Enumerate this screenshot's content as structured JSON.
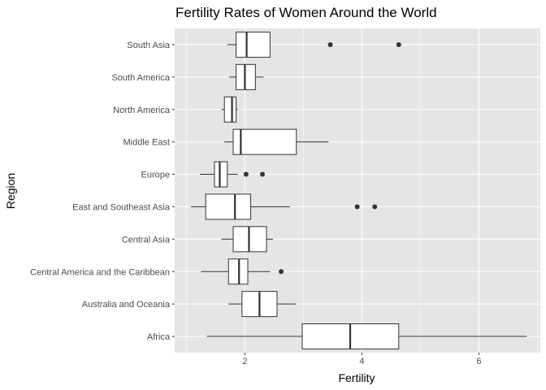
{
  "chart_data": {
    "type": "boxplot",
    "title": "Fertility Rates of Women Around the World",
    "xlabel": "Fertility",
    "ylabel": "Region",
    "xlim": [
      0.8,
      7.05
    ],
    "x_ticks": [
      2,
      4,
      6
    ],
    "orientation": "horizontal",
    "grid": true,
    "colors": {
      "panel": "#e5e5e5",
      "grid": "#ffffff",
      "box_fill": "#ffffff",
      "box_line": "#333333",
      "outlier": "#333333"
    },
    "categories": [
      "South Asia",
      "South America",
      "North America",
      "Middle East",
      "Europe",
      "East and Southeast Asia",
      "Central Asia",
      "Central America and the Caribbean",
      "Australia and Oceania",
      "Africa"
    ],
    "boxes": [
      {
        "region": "South Asia",
        "whisker_low": 1.7,
        "q1": 1.85,
        "median": 2.03,
        "q3": 2.43,
        "whisker_high": 2.43,
        "outliers": [
          3.46,
          4.63
        ]
      },
      {
        "region": "South America",
        "whisker_low": 1.73,
        "q1": 1.85,
        "median": 2.0,
        "q3": 2.18,
        "whisker_high": 2.32,
        "outliers": []
      },
      {
        "region": "North America",
        "whisker_low": 1.6,
        "q1": 1.65,
        "median": 1.78,
        "q3": 1.85,
        "whisker_high": 1.88,
        "outliers": []
      },
      {
        "region": "Middle East",
        "whisker_low": 1.65,
        "q1": 1.8,
        "median": 1.93,
        "q3": 2.88,
        "whisker_high": 3.43,
        "outliers": []
      },
      {
        "region": "Europe",
        "whisker_low": 1.23,
        "q1": 1.48,
        "median": 1.57,
        "q3": 1.7,
        "whisker_high": 1.88,
        "outliers": [
          2.02,
          2.3
        ]
      },
      {
        "region": "East and Southeast Asia",
        "whisker_low": 1.08,
        "q1": 1.33,
        "median": 1.83,
        "q3": 2.1,
        "whisker_high": 2.77,
        "outliers": [
          3.92,
          4.22
        ]
      },
      {
        "region": "Central Asia",
        "whisker_low": 1.6,
        "q1": 1.8,
        "median": 2.07,
        "q3": 2.37,
        "whisker_high": 2.48,
        "outliers": []
      },
      {
        "region": "Central America and the Caribbean",
        "whisker_low": 1.25,
        "q1": 1.72,
        "median": 1.9,
        "q3": 2.05,
        "whisker_high": 2.43,
        "outliers": [
          2.62
        ]
      },
      {
        "region": "Australia and Oceania",
        "whisker_low": 1.72,
        "q1": 1.95,
        "median": 2.25,
        "q3": 2.55,
        "whisker_high": 2.87,
        "outliers": []
      },
      {
        "region": "Africa",
        "whisker_low": 1.35,
        "q1": 2.98,
        "median": 3.8,
        "q3": 4.63,
        "whisker_high": 6.82,
        "outliers": []
      }
    ]
  }
}
